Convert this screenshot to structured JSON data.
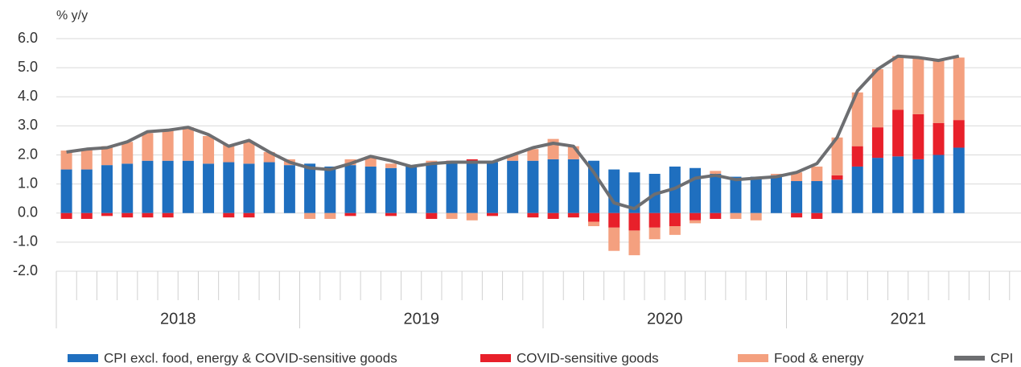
{
  "chart_data": {
    "type": "bar",
    "y_label": "% y/y",
    "ylim": [
      -2,
      6
    ],
    "yticks": [
      {
        "value": 6,
        "label": "6.0"
      },
      {
        "value": 5,
        "label": "5.0"
      },
      {
        "value": 4,
        "label": "4.0"
      },
      {
        "value": 3,
        "label": "3.0"
      },
      {
        "value": 2,
        "label": "2.0"
      },
      {
        "value": 1,
        "label": "1.0"
      },
      {
        "value": 0,
        "label": "0.0"
      },
      {
        "value": -1,
        "label": "-1.0"
      },
      {
        "value": -2,
        "label": "-2.0"
      }
    ],
    "grid": true,
    "stacked": true,
    "x_groups": [
      "2018",
      "2019",
      "2020",
      "2021"
    ],
    "categories": [
      null,
      null,
      null,
      null,
      null,
      null,
      null,
      null,
      null,
      null,
      null,
      null,
      null,
      null,
      null,
      null,
      null,
      null,
      null,
      null,
      null,
      null,
      null,
      null,
      null,
      null,
      null,
      null,
      null,
      null,
      null,
      null,
      null,
      null,
      null,
      null,
      null,
      null,
      null,
      null,
      null,
      null,
      null,
      null,
      null
    ],
    "legend": "bottom",
    "series": [
      {
        "name": "CPI excl. food, energy & COVID-sensitive goods",
        "type": "bar",
        "color": "#1f6fbf",
        "values": [
          1.5,
          1.5,
          1.65,
          1.7,
          1.8,
          1.8,
          1.8,
          1.7,
          1.75,
          1.7,
          1.75,
          1.65,
          1.7,
          1.6,
          1.65,
          1.6,
          1.55,
          1.6,
          1.7,
          1.75,
          1.75,
          1.75,
          1.8,
          1.8,
          1.85,
          1.85,
          1.8,
          1.5,
          1.4,
          1.35,
          1.6,
          1.55,
          1.35,
          1.25,
          1.25,
          1.3,
          1.1,
          1.1,
          1.15,
          1.6,
          1.9,
          1.95,
          1.85,
          2.0,
          2.25
        ]
      },
      {
        "name": "COVID-sensitive goods",
        "type": "bar",
        "color": "#e8202a",
        "values": [
          -0.2,
          -0.2,
          -0.1,
          -0.15,
          -0.15,
          -0.15,
          0,
          0,
          -0.15,
          -0.15,
          0,
          0,
          0,
          0,
          -0.1,
          0,
          -0.1,
          0,
          -0.2,
          0.05,
          0.1,
          -0.1,
          0,
          -0.15,
          -0.2,
          -0.15,
          -0.3,
          -0.5,
          -0.6,
          -0.5,
          -0.45,
          -0.25,
          -0.2,
          0,
          0,
          0,
          -0.15,
          -0.2,
          0.15,
          0.7,
          1.05,
          1.6,
          1.55,
          1.1,
          0.95
        ]
      },
      {
        "name": "Food & energy",
        "type": "bar",
        "color": "#f4a07f",
        "values": [
          0.65,
          0.7,
          0.65,
          0.75,
          0.95,
          1.05,
          1.15,
          0.95,
          0.6,
          0.75,
          0.35,
          0.2,
          -0.2,
          -0.2,
          0.2,
          0.35,
          0.15,
          0.05,
          0.1,
          -0.2,
          -0.25,
          0.05,
          0.2,
          0.4,
          0.7,
          0.45,
          -0.15,
          -0.8,
          -0.85,
          -0.4,
          -0.3,
          -0.1,
          0.1,
          -0.2,
          -0.25,
          0.05,
          0.3,
          0.5,
          1.3,
          1.85,
          2.0,
          1.85,
          1.95,
          2.15,
          2.15
        ]
      },
      {
        "name": "CPI",
        "type": "line",
        "color": "#6d6e71",
        "values": [
          2.1,
          2.2,
          2.25,
          2.45,
          2.8,
          2.85,
          2.95,
          2.7,
          2.3,
          2.5,
          2.1,
          1.75,
          1.55,
          1.5,
          1.7,
          1.95,
          1.8,
          1.6,
          1.7,
          1.75,
          1.75,
          1.75,
          2.0,
          2.25,
          2.4,
          2.3,
          1.4,
          0.35,
          0.15,
          0.65,
          0.85,
          1.2,
          1.3,
          1.15,
          1.2,
          1.25,
          1.4,
          1.7,
          2.6,
          4.2,
          4.95,
          5.4,
          5.35,
          5.25,
          5.4
        ]
      }
    ]
  }
}
